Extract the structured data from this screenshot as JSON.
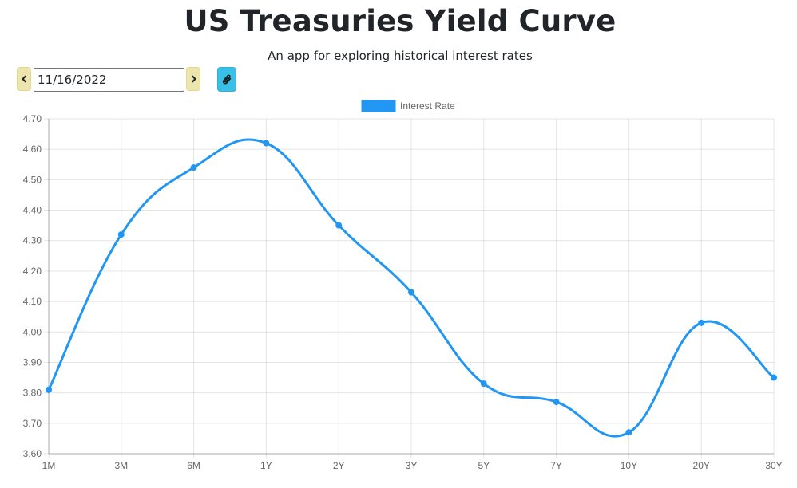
{
  "header": {
    "title": "US Treasuries Yield Curve",
    "subtitle": "An app for exploring historical interest rates"
  },
  "controls": {
    "date_value": "11/16/2022",
    "prev_icon": "chevron-left-icon",
    "next_icon": "chevron-right-icon",
    "share_icon": "paperclip-icon"
  },
  "colors": {
    "accent": "#2196f3",
    "nav_button": "#ede5ae",
    "share_button": "#39c0e6"
  },
  "chart_data": {
    "type": "line",
    "title": "",
    "xlabel": "",
    "ylabel": "",
    "categories": [
      "1M",
      "3M",
      "6M",
      "1Y",
      "2Y",
      "3Y",
      "5Y",
      "7Y",
      "10Y",
      "20Y",
      "30Y"
    ],
    "series": [
      {
        "name": "Interest Rate",
        "color": "#2196f3",
        "values": [
          3.81,
          4.32,
          4.54,
          4.62,
          4.35,
          4.13,
          3.83,
          3.77,
          3.67,
          4.03,
          3.85
        ]
      }
    ],
    "ylim": [
      3.6,
      4.7
    ],
    "yticks": [
      "4.70",
      "4.60",
      "4.50",
      "4.40",
      "4.30",
      "4.20",
      "4.10",
      "4.00",
      "3.90",
      "3.80",
      "3.70",
      "3.60"
    ],
    "smooth": true,
    "grid": true,
    "legend_position": "top-center"
  }
}
